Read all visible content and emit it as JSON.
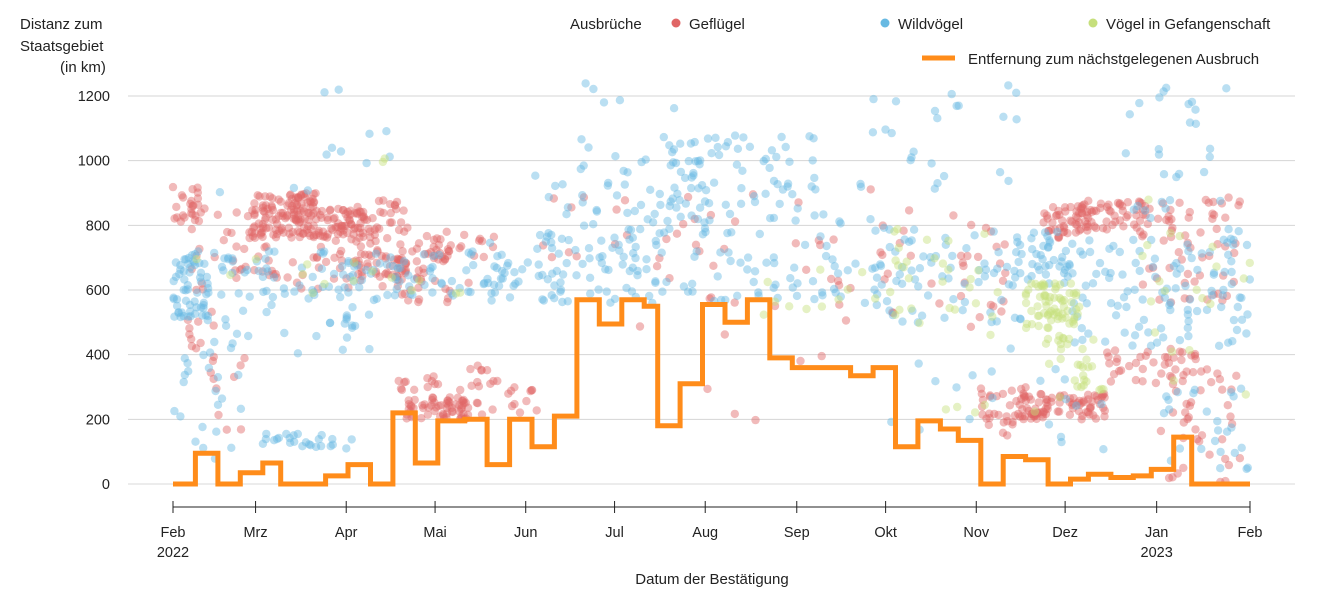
{
  "chart_data": {
    "type": "scatter",
    "title": "",
    "ylabel": [
      "Distanz zum",
      "Staatsgebiet",
      "(in km)"
    ],
    "xlabel": "Datum der Bestätigung",
    "ylim": [
      0,
      1200
    ],
    "xlim": [
      0,
      12
    ],
    "grid": true,
    "legend_position": "top-right",
    "legend_title": "Ausbrüche",
    "yticks": [
      0,
      200,
      400,
      600,
      800,
      1000,
      1200
    ],
    "xticks": [
      {
        "pos": 0,
        "label": "Feb",
        "sub": "2022"
      },
      {
        "pos": 0.92,
        "label": "Mrz",
        "sub": ""
      },
      {
        "pos": 1.93,
        "label": "Apr",
        "sub": ""
      },
      {
        "pos": 2.92,
        "label": "Mai",
        "sub": ""
      },
      {
        "pos": 3.93,
        "label": "Jun",
        "sub": ""
      },
      {
        "pos": 4.92,
        "label": "Jul",
        "sub": ""
      },
      {
        "pos": 5.93,
        "label": "Aug",
        "sub": ""
      },
      {
        "pos": 6.95,
        "label": "Sep",
        "sub": ""
      },
      {
        "pos": 7.94,
        "label": "Okt",
        "sub": ""
      },
      {
        "pos": 8.95,
        "label": "Nov",
        "sub": ""
      },
      {
        "pos": 9.94,
        "label": "Dez",
        "sub": ""
      },
      {
        "pos": 10.96,
        "label": "Jan",
        "sub": "2023"
      },
      {
        "pos": 12,
        "label": "Feb",
        "sub": ""
      }
    ],
    "scatter_series": [
      {
        "name": "Geflügel",
        "color": "#e06666",
        "clusters": [
          {
            "x": [
              0.0,
              0.3
            ],
            "y": [
              780,
              930
            ],
            "n": 22
          },
          {
            "x": [
              0.0,
              0.5
            ],
            "y": [
              380,
              620
            ],
            "n": 12
          },
          {
            "x": [
              0.2,
              1.0
            ],
            "y": [
              600,
              860
            ],
            "n": 30
          },
          {
            "x": [
              0.4,
              0.8
            ],
            "y": [
              160,
              400
            ],
            "n": 10
          },
          {
            "x": [
              0.85,
              1.6
            ],
            "y": [
              760,
              900
            ],
            "n": 130
          },
          {
            "x": [
              1.6,
              2.2
            ],
            "y": [
              760,
              860
            ],
            "n": 70
          },
          {
            "x": [
              1.0,
              2.4
            ],
            "y": [
              600,
              760
            ],
            "n": 45
          },
          {
            "x": [
              2.0,
              2.6
            ],
            "y": [
              640,
              720
            ],
            "n": 30
          },
          {
            "x": [
              2.2,
              2.6
            ],
            "y": [
              760,
              880
            ],
            "n": 20
          },
          {
            "x": [
              2.5,
              3.1
            ],
            "y": [
              560,
              800
            ],
            "n": 60
          },
          {
            "x": [
              2.5,
              3.0
            ],
            "y": [
              290,
              340
            ],
            "n": 12
          },
          {
            "x": [
              2.6,
              3.3
            ],
            "y": [
              200,
              270
            ],
            "n": 60
          },
          {
            "x": [
              3.2,
              4.1
            ],
            "y": [
              210,
              320
            ],
            "n": 25
          },
          {
            "x": [
              3.0,
              3.6
            ],
            "y": [
              620,
              780
            ],
            "n": 15
          },
          {
            "x": [
              3.3,
              3.6
            ],
            "y": [
              350,
              380
            ],
            "n": 5
          },
          {
            "x": [
              4.0,
              8.0
            ],
            "y": [
              560,
              920
            ],
            "n": 45
          },
          {
            "x": [
              5.0,
              8.0
            ],
            "y": [
              100,
              560
            ],
            "n": 10
          },
          {
            "x": [
              8.0,
              9.4
            ],
            "y": [
              480,
              860
            ],
            "n": 30
          },
          {
            "x": [
              9.0,
              9.5
            ],
            "y": [
              150,
              300
            ],
            "n": 30
          },
          {
            "x": [
              9.4,
              10.4
            ],
            "y": [
              200,
              280
            ],
            "n": 90
          },
          {
            "x": [
              9.7,
              10.3
            ],
            "y": [
              760,
              860
            ],
            "n": 50
          },
          {
            "x": [
              10.0,
              10.9
            ],
            "y": [
              780,
              880
            ],
            "n": 50
          },
          {
            "x": [
              10.4,
              11.4
            ],
            "y": [
              300,
              420
            ],
            "n": 40
          },
          {
            "x": [
              10.8,
              11.9
            ],
            "y": [
              560,
              900
            ],
            "n": 60
          },
          {
            "x": [
              11.0,
              11.9
            ],
            "y": [
              120,
              360
            ],
            "n": 30
          },
          {
            "x": [
              11.0,
              11.9
            ],
            "y": [
              0,
              120
            ],
            "n": 10
          }
        ]
      },
      {
        "name": "Wildvögel",
        "color": "#67b9e2",
        "clusters": [
          {
            "x": [
              0.0,
              0.4
            ],
            "y": [
              500,
              720
            ],
            "n": 40
          },
          {
            "x": [
              0.0,
              0.8
            ],
            "y": [
              60,
              460
            ],
            "n": 25
          },
          {
            "x": [
              0.0,
              3.6
            ],
            "y": [
              560,
              720
            ],
            "n": 130
          },
          {
            "x": [
              0.3,
              2.2
            ],
            "y": [
              400,
              560
            ],
            "n": 25
          },
          {
            "x": [
              1.0,
              2.0
            ],
            "y": [
              110,
              160
            ],
            "n": 25
          },
          {
            "x": [
              0.5,
              3.0
            ],
            "y": [
              880,
              1240
            ],
            "n": 12
          },
          {
            "x": [
              3.5,
              5.5
            ],
            "y": [
              560,
              760
            ],
            "n": 90
          },
          {
            "x": [
              4.0,
              6.0
            ],
            "y": [
              760,
              1000
            ],
            "n": 60
          },
          {
            "x": [
              4.4,
              5.8
            ],
            "y": [
              1000,
              1240
            ],
            "n": 12
          },
          {
            "x": [
              5.5,
              7.2
            ],
            "y": [
              860,
              1080
            ],
            "n": 60
          },
          {
            "x": [
              5.5,
              8.0
            ],
            "y": [
              560,
              860
            ],
            "n": 70
          },
          {
            "x": [
              7.6,
              8.6
            ],
            "y": [
              900,
              1200
            ],
            "n": 15
          },
          {
            "x": [
              7.8,
              9.5
            ],
            "y": [
              500,
              800
            ],
            "n": 70
          },
          {
            "x": [
              8.5,
              9.5
            ],
            "y": [
              900,
              1240
            ],
            "n": 10
          },
          {
            "x": [
              9.4,
              10.0
            ],
            "y": [
              620,
              780
            ],
            "n": 40
          },
          {
            "x": [
              10.0,
              12.0
            ],
            "y": [
              420,
              760
            ],
            "n": 110
          },
          {
            "x": [
              10.5,
              12.0
            ],
            "y": [
              760,
              1240
            ],
            "n": 30
          },
          {
            "x": [
              11.0,
              12.0
            ],
            "y": [
              40,
              300
            ],
            "n": 25
          },
          {
            "x": [
              8.0,
              11.0
            ],
            "y": [
              80,
              440
            ],
            "n": 20
          }
        ]
      },
      {
        "name": "Vögel in Gefangenschaft",
        "color": "#c6df7c",
        "clusters": [
          {
            "x": [
              0.2,
              3.5
            ],
            "y": [
              580,
              700
            ],
            "n": 15
          },
          {
            "x": [
              2.0,
              2.5
            ],
            "y": [
              990,
              1010
            ],
            "n": 2
          },
          {
            "x": [
              6.5,
              8.2
            ],
            "y": [
              520,
              700
            ],
            "n": 15
          },
          {
            "x": [
              7.8,
              9.2
            ],
            "y": [
              460,
              800
            ],
            "n": 25
          },
          {
            "x": [
              9.5,
              10.1
            ],
            "y": [
              480,
              620
            ],
            "n": 70
          },
          {
            "x": [
              9.7,
              10.4
            ],
            "y": [
              360,
              460
            ],
            "n": 20
          },
          {
            "x": [
              10.0,
              10.4
            ],
            "y": [
              280,
              340
            ],
            "n": 10
          },
          {
            "x": [
              10.8,
              12.0
            ],
            "y": [
              260,
              880
            ],
            "n": 20
          },
          {
            "x": [
              8.5,
              10.0
            ],
            "y": [
              220,
              300
            ],
            "n": 6
          }
        ]
      }
    ],
    "line_series": {
      "name": "Entfernung zum nächstgelegenen Ausbruch",
      "color": "#ff8c1a",
      "steps": [
        [
          0.0,
          0
        ],
        [
          0.25,
          95
        ],
        [
          0.5,
          0
        ],
        [
          0.75,
          35
        ],
        [
          1.0,
          65
        ],
        [
          1.2,
          0
        ],
        [
          1.7,
          25
        ],
        [
          1.95,
          60
        ],
        [
          2.2,
          0
        ],
        [
          2.45,
          220
        ],
        [
          2.7,
          65
        ],
        [
          2.95,
          195
        ],
        [
          3.25,
          200
        ],
        [
          3.5,
          60
        ],
        [
          3.75,
          200
        ],
        [
          4.0,
          115
        ],
        [
          4.25,
          210
        ],
        [
          4.5,
          570
        ],
        [
          4.75,
          495
        ],
        [
          5.0,
          570
        ],
        [
          5.25,
          550
        ],
        [
          5.4,
          180
        ],
        [
          5.65,
          310
        ],
        [
          5.9,
          555
        ],
        [
          6.15,
          500
        ],
        [
          6.4,
          570
        ],
        [
          6.65,
          390
        ],
        [
          6.9,
          360
        ],
        [
          7.3,
          360
        ],
        [
          7.55,
          335
        ],
        [
          7.8,
          360
        ],
        [
          8.05,
          115
        ],
        [
          8.3,
          195
        ],
        [
          8.55,
          170
        ],
        [
          8.75,
          135
        ],
        [
          9.0,
          0
        ],
        [
          9.25,
          85
        ],
        [
          9.5,
          75
        ],
        [
          9.75,
          0
        ],
        [
          10.0,
          15
        ],
        [
          10.2,
          30
        ],
        [
          10.45,
          20
        ],
        [
          10.7,
          25
        ],
        [
          10.9,
          45
        ],
        [
          11.15,
          145
        ],
        [
          11.35,
          0
        ],
        [
          12.0,
          0
        ]
      ]
    }
  }
}
